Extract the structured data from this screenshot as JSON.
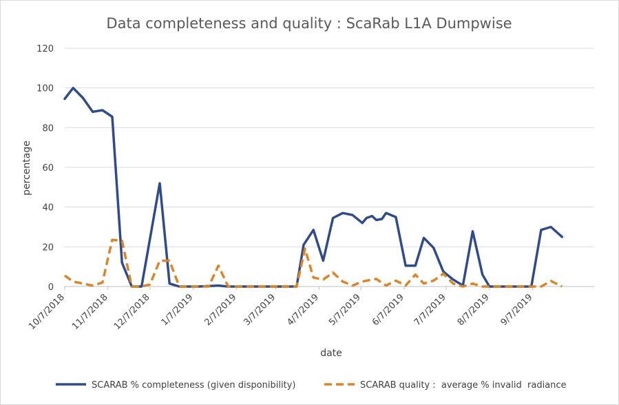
{
  "chart_data": {
    "type": "line",
    "title": "Data completeness and quality : ScaRab L1A Dumpwise",
    "xlabel": "date",
    "ylabel": "percentage",
    "ylim": [
      0,
      120
    ],
    "yticks": [
      0,
      20,
      40,
      60,
      80,
      100,
      120
    ],
    "xlim": [
      "2018-10-07",
      "2019-10-21"
    ],
    "xticks": [
      "2018-10-07",
      "2018-11-07",
      "2018-12-07",
      "2019-01-07",
      "2019-02-07",
      "2019-03-07",
      "2019-04-07",
      "2019-05-07",
      "2019-06-07",
      "2019-07-07",
      "2019-08-07",
      "2019-09-07"
    ],
    "xtick_labels": [
      "10/7/2018",
      "11/7/2018",
      "12/7/2018",
      "1/7/2019",
      "2/7/2019",
      "3/7/2019",
      "4/7/2019",
      "5/7/2019",
      "6/7/2019",
      "7/7/2019",
      "8/7/2019",
      "9/7/2019"
    ],
    "grid": "horizontal",
    "legend_position": "bottom",
    "series": [
      {
        "name": "SCARAB % completeness (given disponibility)",
        "color": "#2f4b8a",
        "style": "solid",
        "points": [
          [
            "2018-10-07",
            94.5
          ],
          [
            "2018-10-13",
            100
          ],
          [
            "2018-10-20",
            95
          ],
          [
            "2018-10-27",
            88
          ],
          [
            "2018-11-03",
            88.8
          ],
          [
            "2018-11-10",
            85.5
          ],
          [
            "2018-11-17",
            12
          ],
          [
            "2018-11-24",
            0
          ],
          [
            "2018-12-01",
            0
          ],
          [
            "2018-12-14",
            52
          ],
          [
            "2018-12-21",
            1.5
          ],
          [
            "2018-12-28",
            0
          ],
          [
            "2019-01-04",
            0
          ],
          [
            "2019-01-11",
            0
          ],
          [
            "2019-01-25",
            0.5
          ],
          [
            "2019-02-01",
            0
          ],
          [
            "2019-02-15",
            0
          ],
          [
            "2019-03-01",
            0
          ],
          [
            "2019-03-15",
            0
          ],
          [
            "2019-03-22",
            0
          ],
          [
            "2019-03-27",
            21
          ],
          [
            "2019-04-03",
            28.5
          ],
          [
            "2019-04-10",
            13
          ],
          [
            "2019-04-17",
            34.5
          ],
          [
            "2019-04-24",
            37
          ],
          [
            "2019-05-01",
            36
          ],
          [
            "2019-05-08",
            32
          ],
          [
            "2019-05-11",
            34.5
          ],
          [
            "2019-05-15",
            35.5
          ],
          [
            "2019-05-18",
            33.5
          ],
          [
            "2019-05-22",
            34
          ],
          [
            "2019-05-25",
            37
          ],
          [
            "2019-06-01",
            35
          ],
          [
            "2019-06-08",
            10.5
          ],
          [
            "2019-06-15",
            10.5
          ],
          [
            "2019-06-21",
            24.5
          ],
          [
            "2019-06-28",
            19.5
          ],
          [
            "2019-07-05",
            7.5
          ],
          [
            "2019-07-12",
            3.5
          ],
          [
            "2019-07-19",
            0.5
          ],
          [
            "2019-07-26",
            27.8
          ],
          [
            "2019-08-02",
            6
          ],
          [
            "2019-08-07",
            0
          ],
          [
            "2019-08-23",
            0
          ],
          [
            "2019-09-06",
            0
          ],
          [
            "2019-09-13",
            28.5
          ],
          [
            "2019-09-20",
            30
          ],
          [
            "2019-09-28",
            25
          ]
        ]
      },
      {
        "name": "SCARAB quality :  average % invalid  radiance",
        "color": "#d9862b",
        "style": "dashed",
        "points": [
          [
            "2018-10-07",
            5.5
          ],
          [
            "2018-10-13",
            2.5
          ],
          [
            "2018-10-20",
            1.5
          ],
          [
            "2018-10-27",
            0.5
          ],
          [
            "2018-11-03",
            2
          ],
          [
            "2018-11-10",
            23.5
          ],
          [
            "2018-11-17",
            23
          ],
          [
            "2018-11-24",
            0
          ],
          [
            "2018-12-01",
            0
          ],
          [
            "2018-12-07",
            1
          ],
          [
            "2018-12-14",
            13
          ],
          [
            "2018-12-21",
            13
          ],
          [
            "2018-12-28",
            0
          ],
          [
            "2019-01-11",
            0
          ],
          [
            "2019-01-18",
            0
          ],
          [
            "2019-01-25",
            10.5
          ],
          [
            "2019-02-01",
            0
          ],
          [
            "2019-02-15",
            0
          ],
          [
            "2019-03-01",
            0
          ],
          [
            "2019-03-15",
            0
          ],
          [
            "2019-03-22",
            0
          ],
          [
            "2019-03-28",
            19
          ],
          [
            "2019-04-03",
            4.5
          ],
          [
            "2019-04-10",
            3.5
          ],
          [
            "2019-04-17",
            7
          ],
          [
            "2019-04-24",
            2.5
          ],
          [
            "2019-05-01",
            0.5
          ],
          [
            "2019-05-08",
            2.5
          ],
          [
            "2019-05-15",
            3.5
          ],
          [
            "2019-05-18",
            3.8
          ],
          [
            "2019-05-25",
            0.5
          ],
          [
            "2019-06-01",
            3
          ],
          [
            "2019-06-08",
            0.5
          ],
          [
            "2019-06-15",
            6
          ],
          [
            "2019-06-21",
            1.5
          ],
          [
            "2019-06-28",
            3
          ],
          [
            "2019-07-05",
            6.5
          ],
          [
            "2019-07-12",
            1.5
          ],
          [
            "2019-07-19",
            0
          ],
          [
            "2019-07-26",
            1.5
          ],
          [
            "2019-08-02",
            0
          ],
          [
            "2019-08-07",
            0
          ],
          [
            "2019-08-23",
            0
          ],
          [
            "2019-09-06",
            0
          ],
          [
            "2019-09-13",
            0
          ],
          [
            "2019-09-20",
            2.8
          ],
          [
            "2019-09-28",
            0
          ]
        ]
      }
    ]
  }
}
